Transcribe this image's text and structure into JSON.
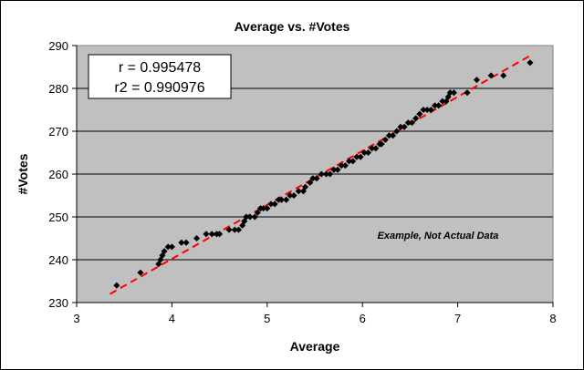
{
  "chart_data": {
    "type": "scatter",
    "title": "Average vs. #Votes",
    "xlabel": "Average",
    "ylabel": "#Votes",
    "xlim": [
      3,
      8
    ],
    "ylim": [
      230,
      290
    ],
    "x_ticks": [
      3,
      4,
      5,
      6,
      7,
      8
    ],
    "y_ticks": [
      230,
      240,
      250,
      260,
      270,
      280,
      290
    ],
    "grid": "horizontal",
    "plot_background": "#c0c0c0",
    "point_color": "#000000",
    "trendline": {
      "type": "linear",
      "color": "#ff0000",
      "style": "dashed",
      "x": [
        3.35,
        7.75
      ],
      "y": [
        232,
        287.5
      ]
    },
    "stats": {
      "r_label": "r = 0.995478",
      "r2_label": "r2 = 0.990976"
    },
    "annotation": "Example, Not Actual Data",
    "points": [
      [
        3.42,
        234
      ],
      [
        3.67,
        237
      ],
      [
        3.86,
        239
      ],
      [
        3.88,
        240
      ],
      [
        3.9,
        241
      ],
      [
        3.92,
        242
      ],
      [
        3.96,
        243
      ],
      [
        4.0,
        243
      ],
      [
        4.1,
        244
      ],
      [
        4.15,
        244
      ],
      [
        4.26,
        245
      ],
      [
        4.36,
        246
      ],
      [
        4.42,
        246
      ],
      [
        4.47,
        246
      ],
      [
        4.5,
        246
      ],
      [
        4.6,
        247
      ],
      [
        4.66,
        247
      ],
      [
        4.7,
        247
      ],
      [
        4.74,
        248
      ],
      [
        4.76,
        249
      ],
      [
        4.78,
        250
      ],
      [
        4.82,
        250
      ],
      [
        4.87,
        250
      ],
      [
        4.9,
        251
      ],
      [
        4.93,
        252
      ],
      [
        4.96,
        252
      ],
      [
        5.0,
        252
      ],
      [
        5.04,
        253
      ],
      [
        5.08,
        253
      ],
      [
        5.12,
        254
      ],
      [
        5.15,
        254
      ],
      [
        5.2,
        254
      ],
      [
        5.24,
        255
      ],
      [
        5.28,
        255
      ],
      [
        5.33,
        256
      ],
      [
        5.38,
        256
      ],
      [
        5.4,
        257
      ],
      [
        5.45,
        258
      ],
      [
        5.48,
        259
      ],
      [
        5.52,
        259
      ],
      [
        5.57,
        260
      ],
      [
        5.62,
        260
      ],
      [
        5.66,
        260
      ],
      [
        5.7,
        261
      ],
      [
        5.74,
        261
      ],
      [
        5.78,
        262
      ],
      [
        5.82,
        262
      ],
      [
        5.86,
        263
      ],
      [
        5.9,
        263
      ],
      [
        5.94,
        264
      ],
      [
        5.98,
        264
      ],
      [
        6.02,
        265
      ],
      [
        6.06,
        265
      ],
      [
        6.1,
        266
      ],
      [
        6.14,
        266
      ],
      [
        6.18,
        267
      ],
      [
        6.2,
        267
      ],
      [
        6.24,
        268
      ],
      [
        6.28,
        269
      ],
      [
        6.32,
        269
      ],
      [
        6.36,
        270
      ],
      [
        6.4,
        271
      ],
      [
        6.44,
        271
      ],
      [
        6.48,
        272
      ],
      [
        6.52,
        272
      ],
      [
        6.56,
        273
      ],
      [
        6.6,
        274
      ],
      [
        6.64,
        275
      ],
      [
        6.68,
        275
      ],
      [
        6.72,
        275
      ],
      [
        6.76,
        276
      ],
      [
        6.8,
        276
      ],
      [
        6.84,
        277
      ],
      [
        6.88,
        277
      ],
      [
        6.9,
        278
      ],
      [
        6.92,
        279
      ],
      [
        6.96,
        279
      ],
      [
        7.1,
        279
      ],
      [
        7.2,
        282
      ],
      [
        7.35,
        283
      ],
      [
        7.48,
        283
      ],
      [
        7.76,
        286
      ]
    ]
  }
}
